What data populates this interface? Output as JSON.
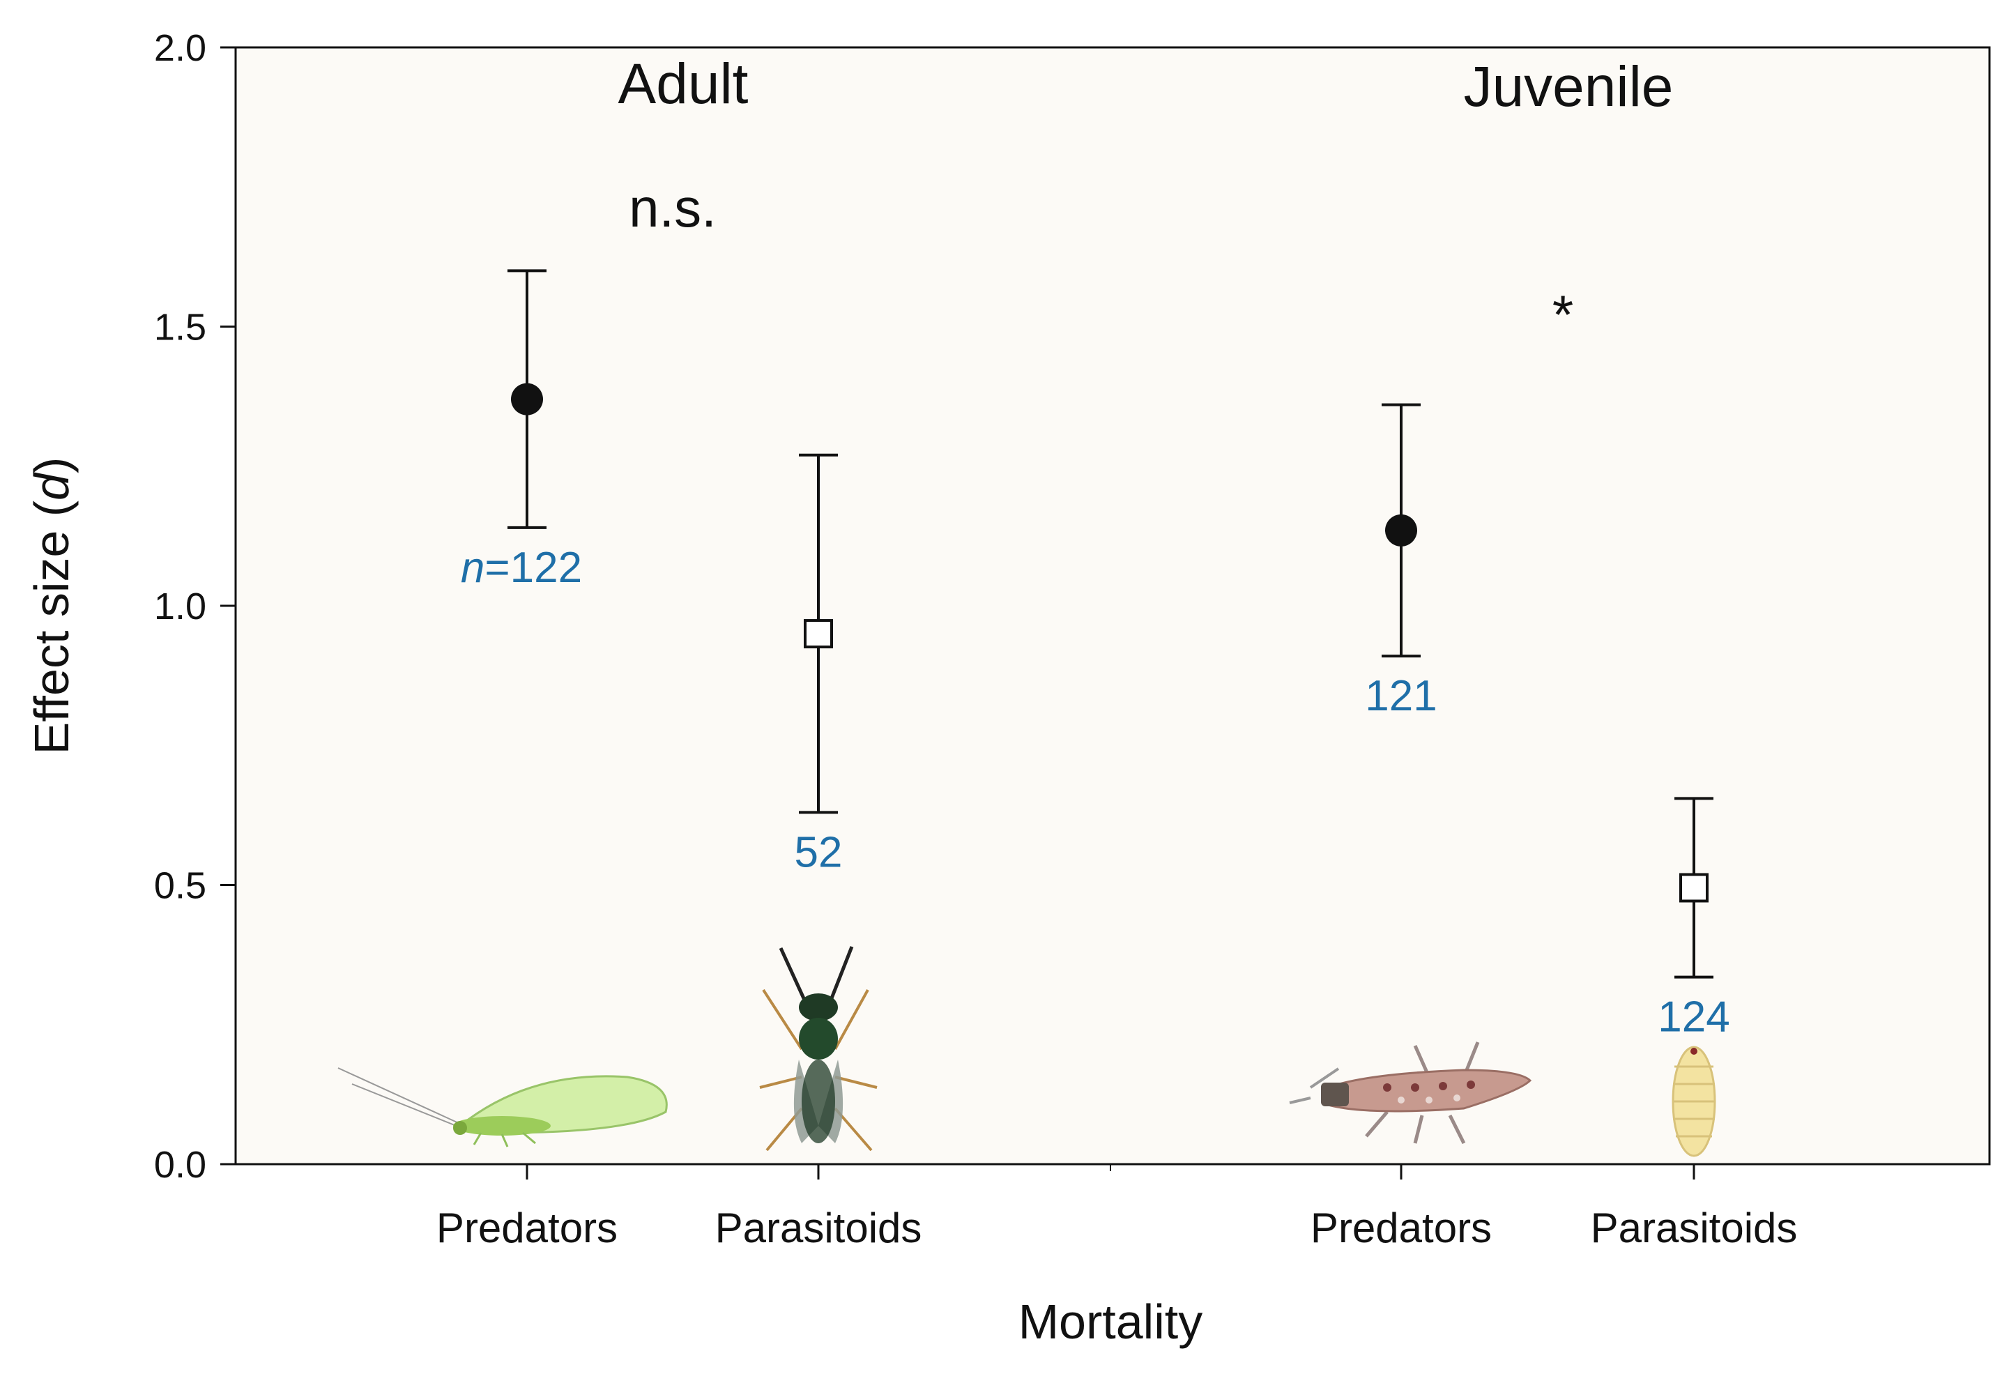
{
  "chart_data": {
    "type": "scatter",
    "xlabel": "Mortality",
    "ylabel_main": "Effect size (",
    "ylabel_italic": "d",
    "ylabel_close": ")",
    "ylim": [
      0,
      2.0
    ],
    "yticks": [
      "0.0",
      "0.5",
      "1.0",
      "1.5",
      "2.0"
    ],
    "grid": false,
    "groups": [
      {
        "name": "Adult",
        "significance": "n.s."
      },
      {
        "name": "Juvenile",
        "significance": "*"
      }
    ],
    "points": [
      {
        "group": "Adult",
        "category": "Predators",
        "marker": "filled-circle",
        "mean": 1.37,
        "ci_low": 1.14,
        "ci_high": 1.6,
        "n_prefix": "n",
        "n_label": "=122"
      },
      {
        "group": "Adult",
        "category": "Parasitoids",
        "marker": "open-square",
        "mean": 0.95,
        "ci_low": 0.63,
        "ci_high": 1.27,
        "n_prefix": "",
        "n_label": "52"
      },
      {
        "group": "Juvenile",
        "category": "Predators",
        "marker": "filled-circle",
        "mean": 1.135,
        "ci_low": 0.91,
        "ci_high": 1.36,
        "n_prefix": "",
        "n_label": "121"
      },
      {
        "group": "Juvenile",
        "category": "Parasitoids",
        "marker": "open-square",
        "mean": 0.495,
        "ci_low": 0.335,
        "ci_high": 0.655,
        "n_prefix": "",
        "n_label": "124"
      }
    ],
    "illustrations": [
      "lacewing-adult-icon",
      "parasitoid-wasp-icon",
      "lacewing-larva-icon",
      "parasitoid-pupa-icon"
    ]
  },
  "colors": {
    "plot_bg": "#fcfaf6",
    "n_label": "#1f6fa8",
    "ink": "#111111",
    "lacewing": "#b6df7e",
    "larva": "#c79a8f",
    "pupa": "#f3e3a1",
    "wasp_body": "#1f3a25"
  }
}
